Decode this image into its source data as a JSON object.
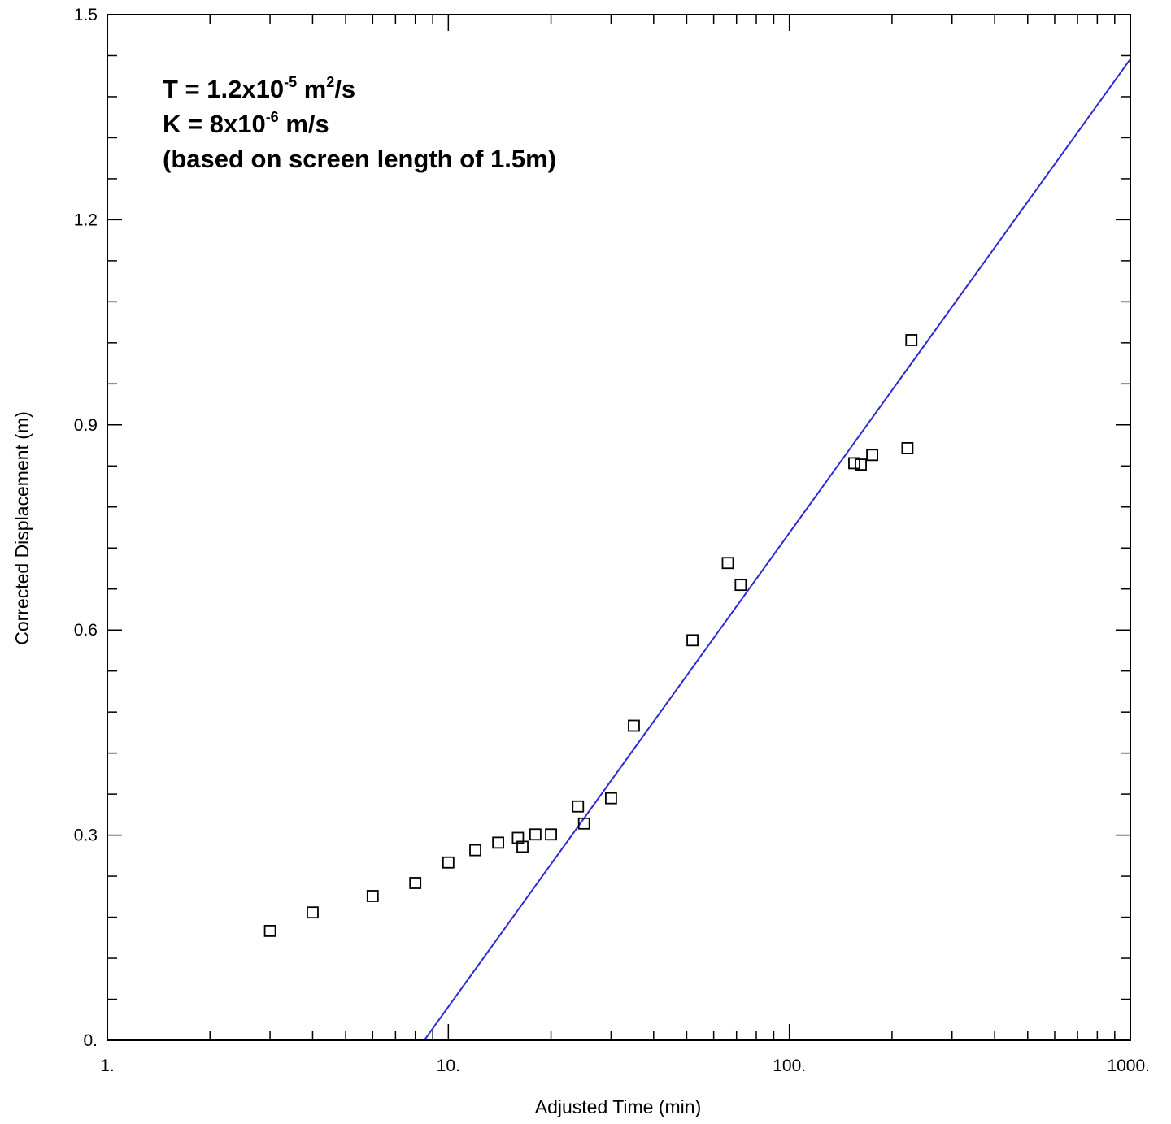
{
  "chart_data": {
    "type": "scatter",
    "xlabel": "Adjusted Time (min)",
    "ylabel": "Corrected Displacement (m)",
    "x_scale": "log",
    "xlim": [
      1,
      1000
    ],
    "ylim": [
      0,
      1.5
    ],
    "x_ticks": [
      "1.",
      "10.",
      "100.",
      "1000."
    ],
    "y_ticks": [
      "0.",
      "0.3",
      "0.6",
      "0.9",
      "1.2",
      "1.5"
    ],
    "grid": false,
    "annotations": {
      "line1": {
        "a": "T = 1.2x10",
        "sup1": "-5",
        "b": " m",
        "sup2": "2",
        "c": "/s"
      },
      "line2": {
        "a": "K = 8x10",
        "sup1": "-6",
        "b": " m/s"
      },
      "line3": "(based on screen length of 1.5m)"
    },
    "series": [
      {
        "type": "scatter",
        "marker": "open-square",
        "color": "#000000",
        "x": [
          3.0,
          4.0,
          6.0,
          8.0,
          10.0,
          12.0,
          14.0,
          16.0,
          16.5,
          18.0,
          20.0,
          24.0,
          25.0,
          30.0,
          35.0,
          52.0,
          66.0,
          72.0,
          155.0,
          162.0,
          175.0,
          222.0,
          228.0
        ],
        "y": [
          0.16,
          0.187,
          0.211,
          0.23,
          0.26,
          0.278,
          0.289,
          0.296,
          0.283,
          0.301,
          0.301,
          0.342,
          0.317,
          0.354,
          0.46,
          0.585,
          0.698,
          0.666,
          0.844,
          0.842,
          0.856,
          0.866,
          1.024
        ]
      },
      {
        "type": "line",
        "color": "#2a2ad6",
        "x": [
          8.5,
          1000
        ],
        "y": [
          0.0,
          1.435
        ]
      }
    ]
  }
}
